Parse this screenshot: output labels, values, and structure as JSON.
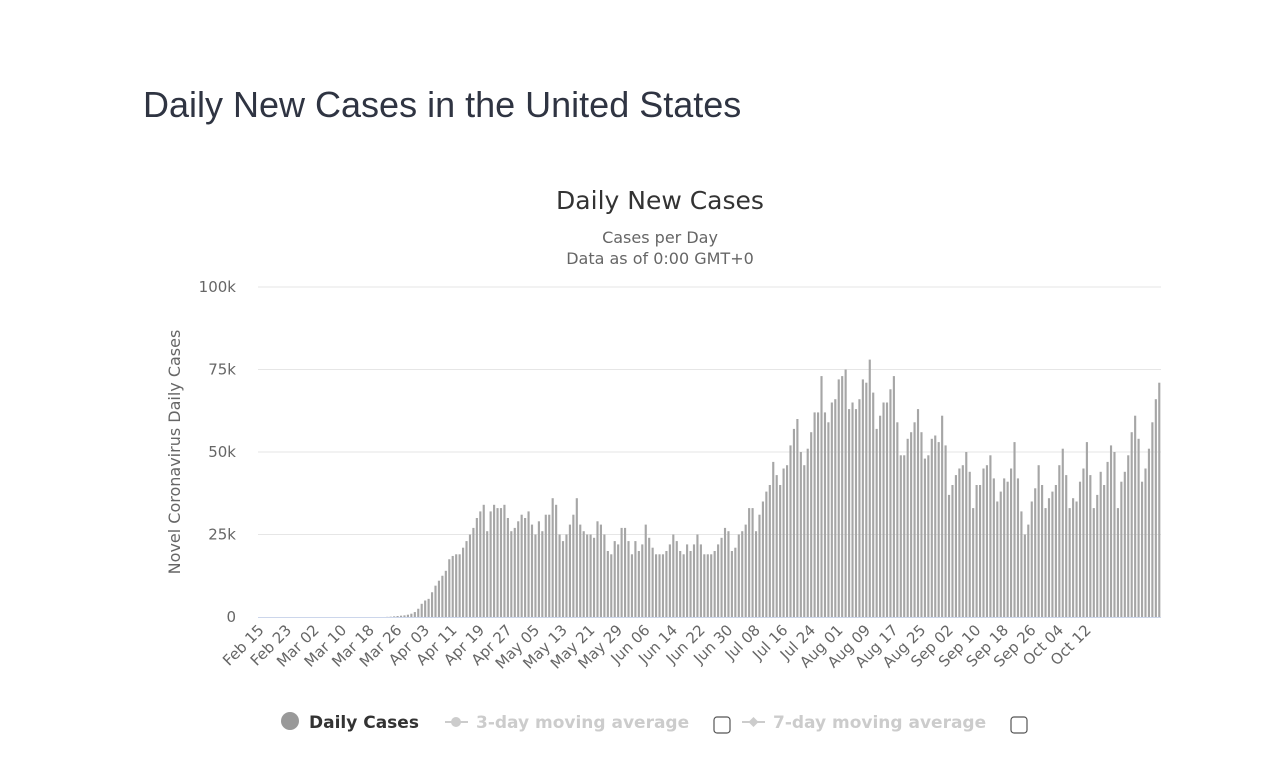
{
  "page": {
    "title": "Daily New Cases in the United States"
  },
  "legend": {
    "items": [
      {
        "label": "Daily Cases",
        "active": true
      },
      {
        "label": "3-day moving average",
        "active": false,
        "checked": false
      },
      {
        "label": "7-day moving average",
        "active": false,
        "checked": false
      }
    ]
  },
  "colors": {
    "bar": "#a6a6a6",
    "grid": "#e6e6e6",
    "baseline": "#ccd6eb",
    "title": "#2f3442"
  },
  "chart_data": {
    "type": "bar",
    "title": "Daily New Cases",
    "subtitle_lines": [
      "Cases per Day",
      "Data as of 0:00 GMT+0"
    ],
    "ylabel": "Novel Coronavirus Daily Cases",
    "xlabel": "",
    "ylim": [
      0,
      100000
    ],
    "yticks": [
      0,
      25000,
      50000,
      75000,
      100000
    ],
    "ytick_labels": [
      "0",
      "25k",
      "50k",
      "75k",
      "100k"
    ],
    "grid": true,
    "start_date": "2020-02-15",
    "xtick_labels": [
      "Feb 15",
      "Feb 23",
      "Mar 02",
      "Mar 10",
      "Mar 18",
      "Mar 26",
      "Apr 03",
      "Apr 11",
      "Apr 19",
      "Apr 27",
      "May 05",
      "May 13",
      "May 21",
      "May 29",
      "Jun 06",
      "Jun 14",
      "Jun 22",
      "Jun 30",
      "Jul 08",
      "Jul 16",
      "Jul 24",
      "Aug 01",
      "Aug 09",
      "Aug 17",
      "Aug 25",
      "Sep 02",
      "Sep 10",
      "Sep 18",
      "Sep 26",
      "Oct 04",
      "Oct 12"
    ],
    "series": [
      {
        "name": "Daily Cases",
        "values": [
          0,
          0,
          0,
          0,
          0,
          0,
          0,
          0,
          0,
          0,
          0,
          0,
          0,
          0,
          0,
          0,
          0,
          0,
          0,
          0,
          0,
          0,
          0,
          0,
          0,
          0,
          0,
          0,
          0,
          0,
          0,
          0,
          0,
          0,
          0,
          0,
          0,
          50,
          100,
          200,
          300,
          400,
          500,
          700,
          1000,
          1500,
          2500,
          4000,
          5000,
          5500,
          7500,
          9500,
          11000,
          12500,
          14000,
          17500,
          18500,
          19000,
          19000,
          21000,
          23000,
          25000,
          27000,
          30000,
          32000,
          34000,
          26000,
          32000,
          34000,
          33000,
          33000,
          34000,
          30000,
          26000,
          27000,
          29000,
          31000,
          30000,
          32000,
          28000,
          25000,
          29000,
          26000,
          31000,
          31000,
          36000,
          34000,
          25000,
          23000,
          25000,
          28000,
          31000,
          36000,
          28000,
          26000,
          25000,
          25000,
          24000,
          29000,
          28000,
          25000,
          20000,
          19000,
          23000,
          22000,
          27000,
          27000,
          23000,
          19000,
          23000,
          20000,
          22000,
          28000,
          24000,
          21000,
          19000,
          19000,
          19000,
          20000,
          22000,
          25000,
          23000,
          20000,
          19000,
          22000,
          20000,
          22000,
          25000,
          22000,
          19000,
          19000,
          19000,
          20000,
          22000,
          24000,
          27000,
          26000,
          20000,
          21000,
          25000,
          26000,
          28000,
          33000,
          33000,
          26000,
          31000,
          35000,
          38000,
          40000,
          47000,
          43000,
          40000,
          45000,
          46000,
          52000,
          57000,
          60000,
          50000,
          46000,
          51000,
          56000,
          62000,
          62000,
          73000,
          62000,
          59000,
          65000,
          66000,
          72000,
          73000,
          75000,
          63000,
          65000,
          63000,
          66000,
          72000,
          71000,
          78000,
          68000,
          57000,
          61000,
          65000,
          65000,
          69000,
          73000,
          59000,
          49000,
          49000,
          54000,
          56000,
          59000,
          63000,
          56000,
          48000,
          49000,
          54000,
          55000,
          53000,
          61000,
          52000,
          37000,
          40000,
          43000,
          45000,
          46000,
          50000,
          44000,
          33000,
          40000,
          40000,
          45000,
          46000,
          49000,
          42000,
          35000,
          38000,
          42000,
          41000,
          45000,
          53000,
          42000,
          32000,
          25000,
          28000,
          35000,
          39000,
          46000,
          40000,
          33000,
          36000,
          38000,
          40000,
          46000,
          51000,
          43000,
          33000,
          36000,
          35000,
          41000,
          45000,
          53000,
          43000,
          33000,
          37000,
          44000,
          40000,
          47000,
          52000,
          50000,
          33000,
          41000,
          44000,
          49000,
          56000,
          61000,
          54000,
          41000,
          45000,
          51000,
          59000,
          66000,
          71000
        ]
      }
    ]
  }
}
